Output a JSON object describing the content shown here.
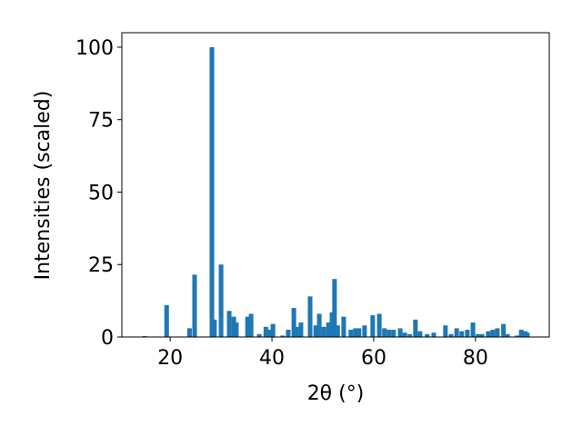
{
  "chart_data": {
    "type": "bar",
    "x_label": "2θ (°)",
    "y_label": "Intensities (scaled)",
    "x": [
      15,
      19.3,
      23.8,
      24.8,
      28.2,
      28.7,
      30,
      31.6,
      32.5,
      33,
      35.2,
      35.9,
      37.5,
      38.8,
      39.5,
      40.2,
      42.1,
      43.2,
      44.3,
      44.8,
      45.7,
      47.5,
      48.6,
      49.3,
      50.2,
      51.1,
      51.8,
      52.3,
      52.9,
      54.1,
      55.5,
      56.4,
      57.1,
      58.2,
      59.8,
      61.1,
      62.1,
      63,
      63.9,
      65.2,
      66.1,
      67.1,
      68.2,
      69.1,
      70.5,
      71.8,
      74.1,
      75.2,
      76.3,
      77.3,
      78.4,
      79.5,
      80.5,
      81.3,
      82.5,
      83.4,
      84.3,
      85.5,
      86.3,
      88.2,
      89,
      89.8,
      90.2
    ],
    "values": [
      0.3,
      11,
      3,
      21.5,
      100,
      6,
      25,
      9,
      7,
      5,
      7,
      8,
      1,
      3.5,
      2.5,
      4.5,
      0.5,
      2.5,
      10,
      3.5,
      5,
      14,
      4,
      8,
      3.5,
      5,
      8.5,
      20,
      4,
      7,
      2.5,
      3,
      3,
      4,
      7.5,
      8,
      3,
      2.5,
      2.5,
      3,
      1.5,
      1,
      6,
      2,
      1,
      1.5,
      4,
      1,
      3,
      2,
      2.5,
      5,
      1,
      1,
      2,
      2.5,
      3,
      4.5,
      1,
      0.5,
      2.5,
      2,
      1.5
    ],
    "color": "#1f77b4",
    "xlim": [
      10.5,
      94.5
    ],
    "ylim": [
      0,
      105
    ],
    "xticks": [
      20,
      40,
      60,
      80
    ],
    "yticks": [
      0,
      25,
      50,
      75,
      100
    ]
  }
}
